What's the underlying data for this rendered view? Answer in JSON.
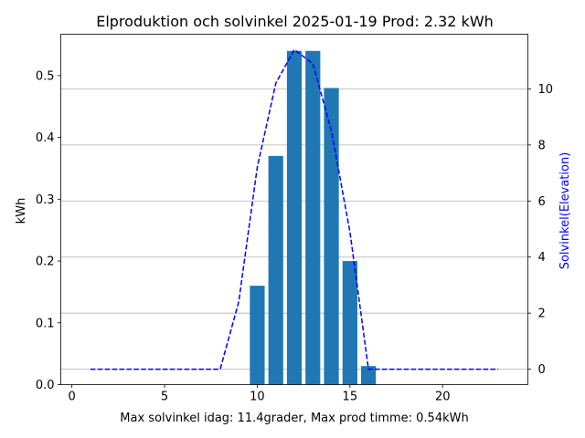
{
  "chart_data": {
    "type": "bar",
    "title": "Elproduktion och solvinkel 2025-01-19 Prod: 2.32 kWh",
    "xlabel": "Max solvinkel idag: 11.4grader, Max prod timme: 0.54kWh",
    "ylabel": "kWh",
    "ylabel_right": "Solvinkel(Elevation)",
    "xlim": [
      -0.6,
      24.6
    ],
    "ylim": [
      0,
      0.567
    ],
    "ylim_right": [
      -0.55,
      11.95
    ],
    "xticks": [
      0,
      5,
      10,
      15,
      20
    ],
    "yticks": [
      0.0,
      0.1,
      0.2,
      0.3,
      0.4,
      0.5
    ],
    "yticks_right": [
      0,
      2,
      4,
      6,
      8,
      10
    ],
    "grid": "horizontal lines at right-axis ticks",
    "bar_series": {
      "color": "#1f77b4",
      "x": [
        10,
        11,
        12,
        13,
        14,
        15,
        16
      ],
      "values": [
        0.16,
        0.37,
        0.54,
        0.54,
        0.48,
        0.2,
        0.03
      ]
    },
    "line_series": {
      "axis": "right",
      "color": "#0000ff",
      "style": "dashed",
      "x": [
        1,
        2,
        3,
        4,
        5,
        6,
        7,
        8,
        9,
        10,
        11,
        12,
        13,
        14,
        15,
        16,
        17,
        18,
        19,
        20,
        21,
        22,
        23
      ],
      "values": [
        0,
        0,
        0,
        0,
        0,
        0,
        0,
        0,
        2.4,
        7.2,
        10.2,
        11.4,
        10.9,
        8.5,
        4.9,
        0,
        0,
        0,
        0,
        0,
        0,
        0,
        0
      ]
    }
  }
}
